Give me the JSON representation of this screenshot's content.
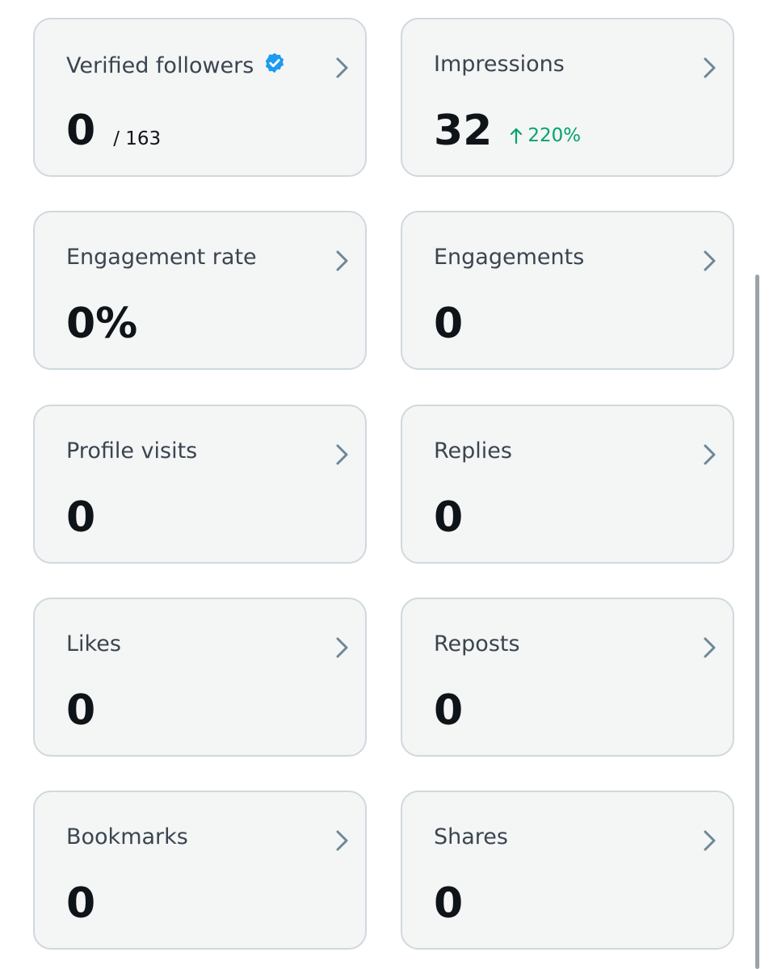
{
  "cards": [
    {
      "title": "Verified followers",
      "value": "0",
      "total": "/ 163"
    },
    {
      "title": "Impressions",
      "value": "32",
      "change": "220%"
    },
    {
      "title": "Engagement rate",
      "value": "0%"
    },
    {
      "title": "Engagements",
      "value": "0"
    },
    {
      "title": "Profile visits",
      "value": "0"
    },
    {
      "title": "Replies",
      "value": "0"
    },
    {
      "title": "Likes",
      "value": "0"
    },
    {
      "title": "Reposts",
      "value": "0"
    },
    {
      "title": "Bookmarks",
      "value": "0"
    },
    {
      "title": "Shares",
      "value": "0"
    }
  ]
}
